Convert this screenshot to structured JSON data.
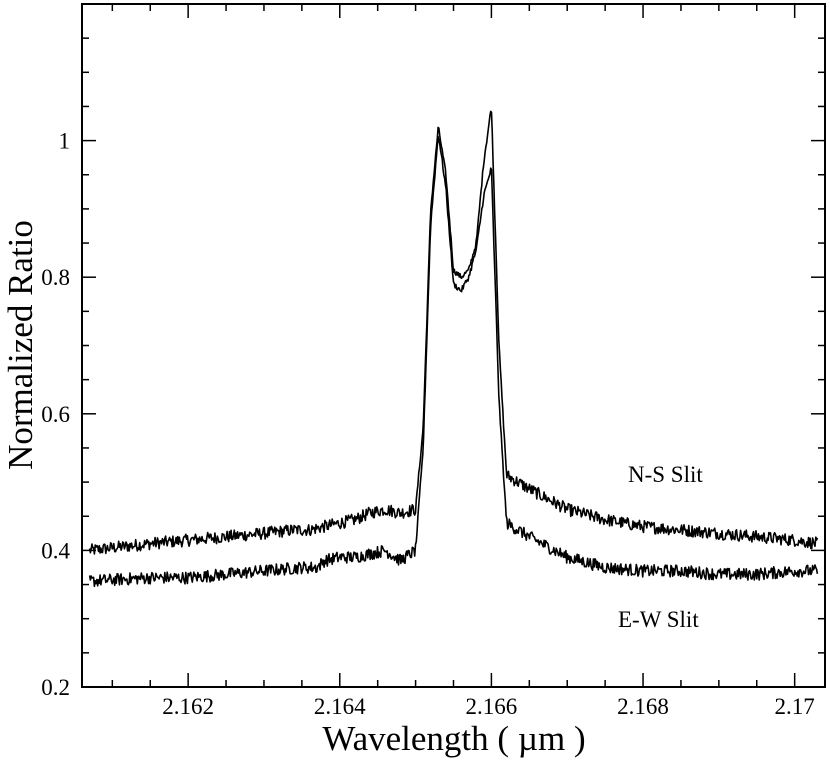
{
  "chart_data": {
    "type": "line",
    "title": "",
    "xlabel": "Wavelength ( µm )",
    "ylabel": "Normalized Ratio",
    "xlim": [
      2.1606,
      2.1704
    ],
    "ylim": [
      0.2,
      1.2
    ],
    "x_ticks": [
      2.162,
      2.164,
      2.166,
      2.168,
      2.17
    ],
    "x_tick_labels": [
      "2.162",
      "2.164",
      "2.166",
      "2.168",
      "2.17"
    ],
    "y_ticks": [
      0.2,
      0.4,
      0.6,
      0.8,
      1.0
    ],
    "y_tick_labels": [
      "0.2",
      "0.4",
      "0.6",
      "0.8",
      "1"
    ],
    "grid": false,
    "series": [
      {
        "name": "N-S Slit",
        "x": [
          2.1607,
          2.1615,
          2.162,
          2.1625,
          2.163,
          2.1634,
          2.1636,
          2.1638,
          2.164,
          2.1642,
          2.1644,
          2.1646,
          2.1648,
          2.165,
          2.1651,
          2.1652,
          2.1653,
          2.1654,
          2.1655,
          2.1656,
          2.1657,
          2.1658,
          2.1659,
          2.166,
          2.1661,
          2.1662,
          2.1665,
          2.167,
          2.1675,
          2.168,
          2.1685,
          2.169,
          2.1695,
          2.17,
          2.1703
        ],
        "y": [
          0.4,
          0.41,
          0.415,
          0.42,
          0.425,
          0.43,
          0.43,
          0.435,
          0.44,
          0.445,
          0.455,
          0.46,
          0.455,
          0.46,
          0.58,
          0.9,
          1.02,
          0.95,
          0.81,
          0.8,
          0.81,
          0.85,
          0.97,
          1.05,
          0.7,
          0.51,
          0.49,
          0.46,
          0.445,
          0.435,
          0.43,
          0.425,
          0.42,
          0.415,
          0.41
        ]
      },
      {
        "name": "E-W Slit",
        "x": [
          2.1607,
          2.1615,
          2.162,
          2.1625,
          2.163,
          2.1635,
          2.1637,
          2.1638,
          2.164,
          2.1642,
          2.1644,
          2.1646,
          2.1648,
          2.165,
          2.1651,
          2.1652,
          2.1653,
          2.1654,
          2.1655,
          2.1656,
          2.1657,
          2.1658,
          2.1659,
          2.166,
          2.1661,
          2.1662,
          2.1665,
          2.167,
          2.1675,
          2.168,
          2.1685,
          2.169,
          2.1695,
          2.17,
          2.1703
        ],
        "y": [
          0.355,
          0.36,
          0.36,
          0.365,
          0.37,
          0.375,
          0.375,
          0.385,
          0.39,
          0.39,
          0.395,
          0.4,
          0.385,
          0.4,
          0.55,
          0.88,
          1.01,
          0.93,
          0.79,
          0.78,
          0.8,
          0.84,
          0.92,
          0.96,
          0.62,
          0.44,
          0.42,
          0.39,
          0.375,
          0.37,
          0.37,
          0.365,
          0.365,
          0.37,
          0.37
        ]
      }
    ],
    "annotations": [
      "N-S Slit",
      "E-W Slit"
    ]
  }
}
